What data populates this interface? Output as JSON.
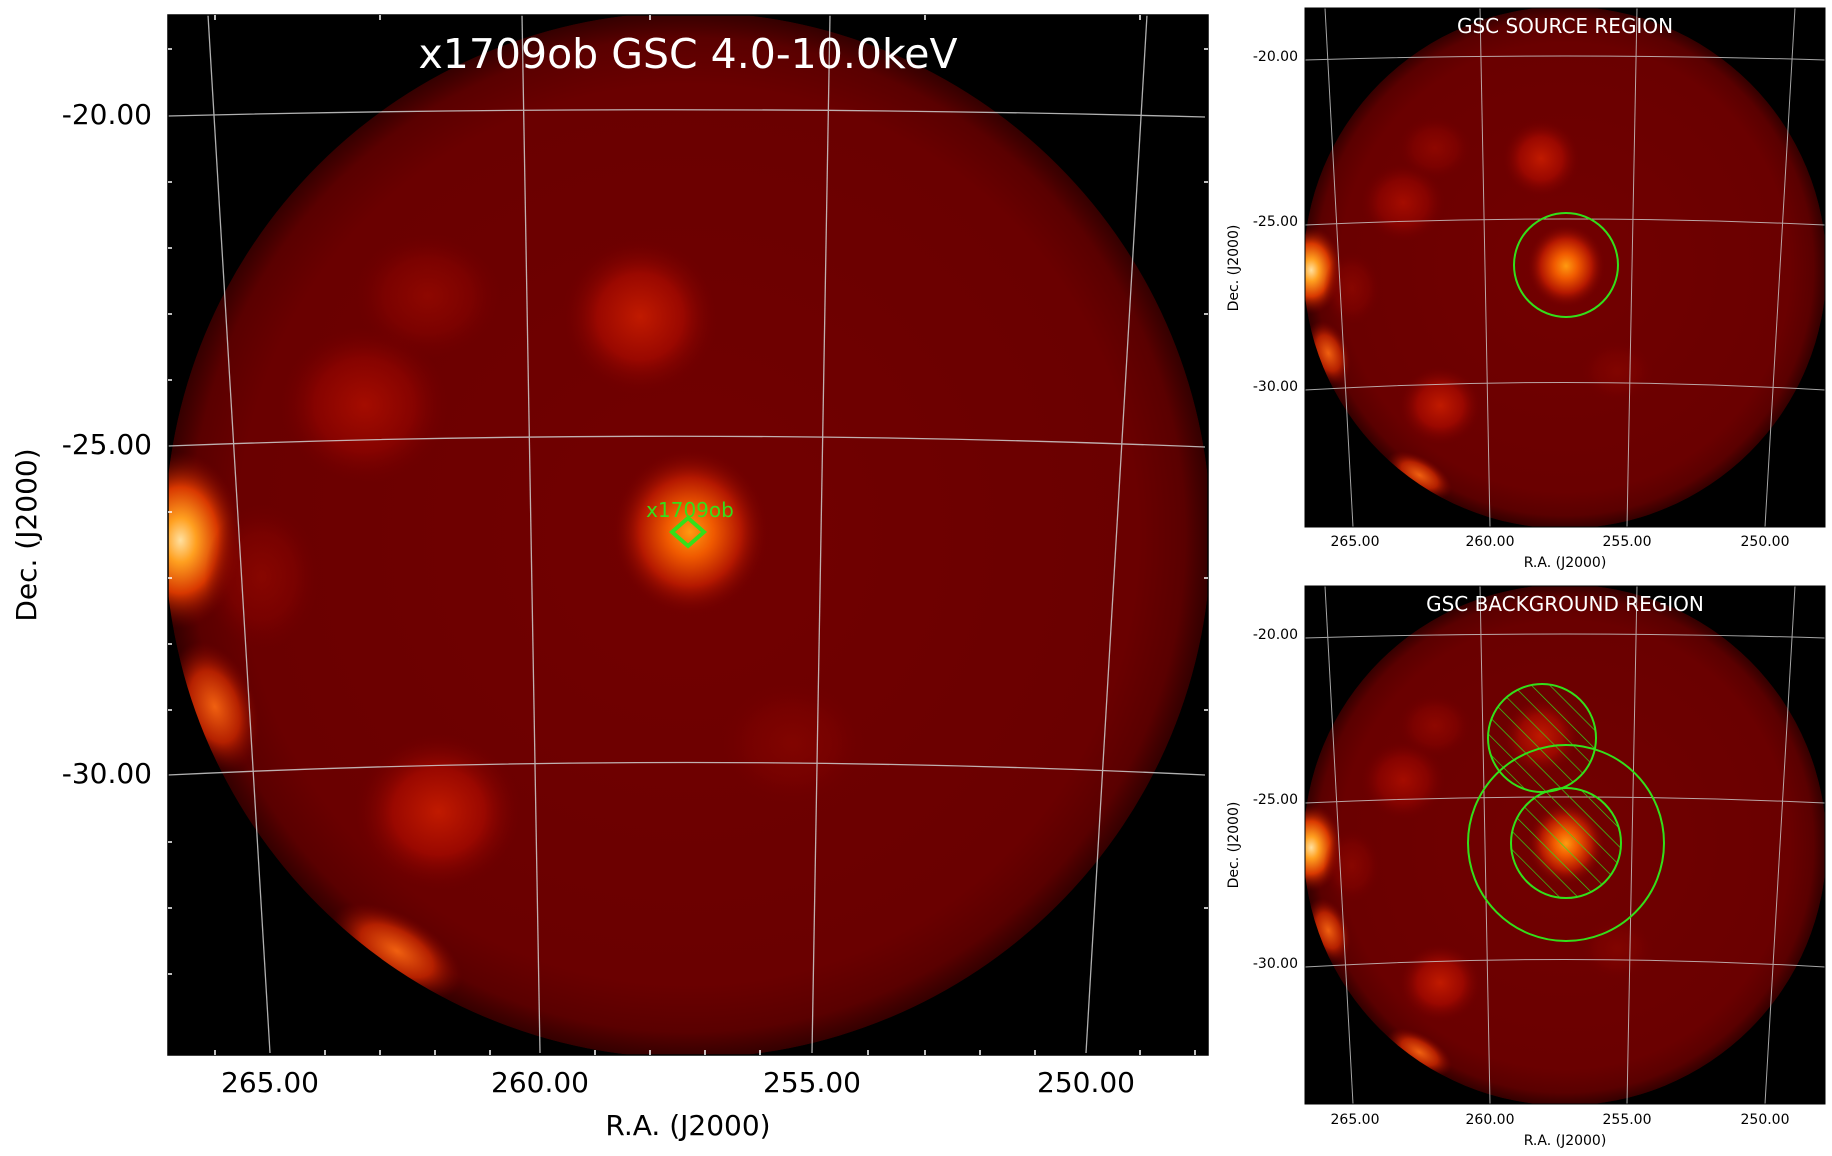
{
  "main_panel": {
    "title": "x1709ob GSC 4.0-10.0keV",
    "xlabel": "R.A. (J2000)",
    "ylabel": "Dec. (J2000)",
    "x_ticks": [
      "265.00",
      "260.00",
      "255.00",
      "250.00"
    ],
    "y_ticks": [
      "-20.00",
      "-25.00",
      "-30.00"
    ],
    "source_marker_label": "x1709ob"
  },
  "source_panel": {
    "title": "GSC SOURCE REGION",
    "xlabel": "R.A. (J2000)",
    "ylabel": "Dec. (J2000)",
    "x_ticks": [
      "265.00",
      "260.00",
      "255.00",
      "250.00"
    ],
    "y_ticks": [
      "-20.00",
      "-25.00",
      "-30.00"
    ]
  },
  "background_panel": {
    "title": "GSC BACKGROUND REGION",
    "xlabel": "R.A. (J2000)",
    "ylabel": "Dec. (J2000)",
    "x_ticks": [
      "265.00",
      "260.00",
      "255.00",
      "250.00"
    ],
    "y_ticks": [
      "-20.00",
      "-25.00",
      "-30.00"
    ]
  },
  "colors": {
    "image_background": "#000000",
    "sky_base": "#6e0000",
    "source_glow": "#ff7a00",
    "region_green": "#33e01a",
    "grid": "#cfcfcf"
  }
}
